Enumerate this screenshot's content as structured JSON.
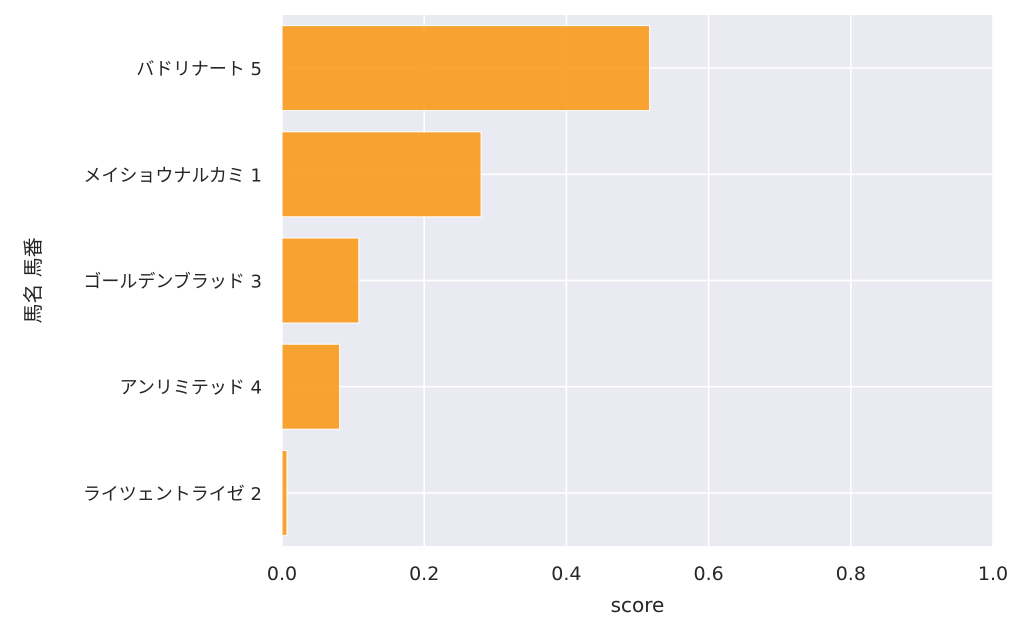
{
  "chart_data": {
    "type": "bar",
    "orientation": "horizontal",
    "categories": [
      "バドリナート 5",
      "メイショウナルカミ 1",
      "ゴールデンブラッド 3",
      "アンリミテッド 4",
      "ライツェントライゼ 2"
    ],
    "values": [
      0.517,
      0.28,
      0.108,
      0.081,
      0.007
    ],
    "xlabel": "score",
    "ylabel": "馬名 馬番",
    "xlim": [
      0.0,
      1.0
    ],
    "xticks": [
      "0.0",
      "0.2",
      "0.4",
      "0.6",
      "0.8",
      "1.0"
    ],
    "grid": true,
    "bar_color": "#f99a1c",
    "plot_background": "#eaeaf2",
    "grid_color": "#ffffff"
  }
}
